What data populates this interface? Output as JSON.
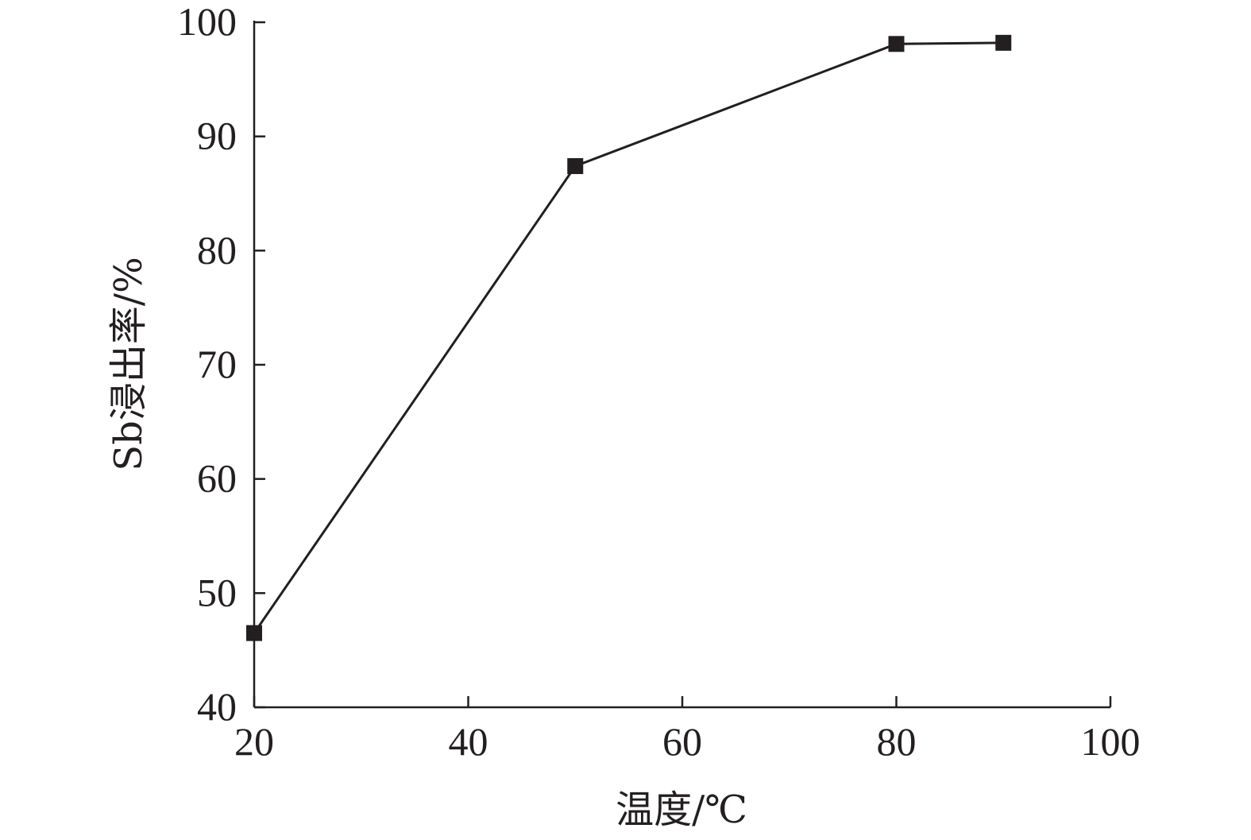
{
  "chart_data": {
    "type": "line",
    "title": "",
    "xlabel": "温度/℃",
    "ylabel": "Sb浸出率/%",
    "xlim": [
      20,
      100
    ],
    "ylim": [
      40,
      100
    ],
    "xticks": [
      20,
      40,
      60,
      80,
      100
    ],
    "yticks": [
      40,
      50,
      60,
      70,
      80,
      90,
      100
    ],
    "grid": false,
    "marker": "square",
    "series": [
      {
        "x": [
          20,
          50,
          80,
          90
        ],
        "y": [
          46.5,
          87.4,
          98.1,
          98.2
        ]
      }
    ],
    "colors": {
      "ink": "#231f20"
    }
  }
}
